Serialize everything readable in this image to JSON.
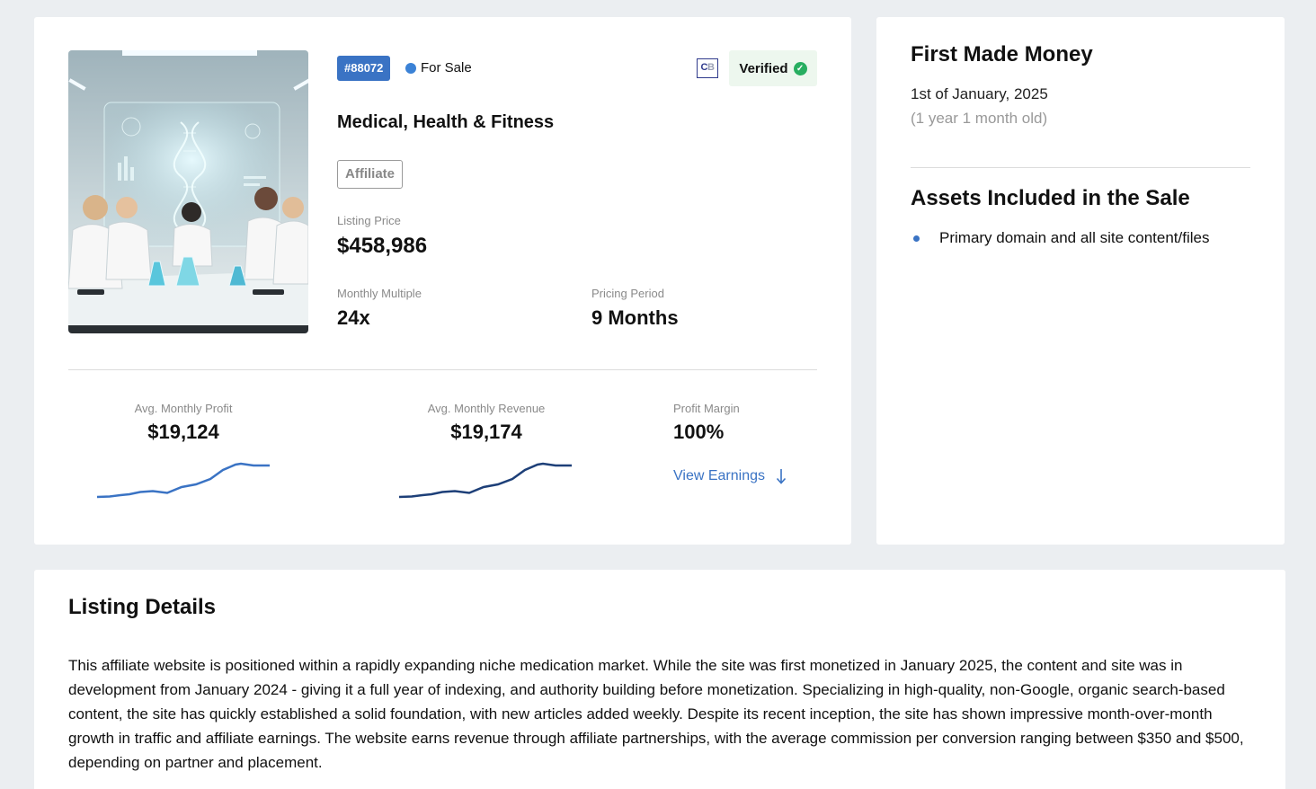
{
  "listing": {
    "id_badge": "#88072",
    "status": "For Sale",
    "status_color": "#3b82d6",
    "badge_color": "#3a73c4",
    "cb_logo_left": "C",
    "cb_logo_right": "B",
    "verified_label": "Verified",
    "category": "Medical, Health & Fitness",
    "type": "Affiliate",
    "listing_price_label": "Listing Price",
    "listing_price": "$458,986",
    "monthly_multiple_label": "Monthly Multiple",
    "monthly_multiple": "24x",
    "pricing_period_label": "Pricing Period",
    "pricing_period": "9 Months"
  },
  "stats": {
    "profit_label": "Avg. Monthly Profit",
    "profit_value": "$19,124",
    "revenue_label": "Avg. Monthly Revenue",
    "revenue_value": "$19,174",
    "margin_label": "Profit Margin",
    "margin_value": "100%",
    "view_earnings": "View Earnings",
    "profit_color": "#3a73c4",
    "revenue_color": "#1d3f78"
  },
  "sidebar": {
    "first_money_title": "First Made Money",
    "first_money_date": "1st of January, 2025",
    "first_money_age": "(1 year 1 month old)",
    "assets_title": "Assets Included in the Sale",
    "assets": [
      "Primary domain and all site content/files"
    ]
  },
  "details": {
    "title": "Listing Details",
    "body": "This affiliate website is positioned within a rapidly expanding niche medication market. While the site was first monetized in January 2025, the content and site was in development from January 2024 - giving it a full year of indexing, and authority building before monetization. Specializing in high-quality, non-Google, organic search-based content, the site has quickly established a solid foundation, with new articles added weekly. Despite its recent inception, the site has shown impressive month-over-month growth in traffic and affiliate earnings. The website earns revenue through affiliate partnerships, with the average commission per conversion ranging between $350 and $500, depending on partner and placement."
  }
}
